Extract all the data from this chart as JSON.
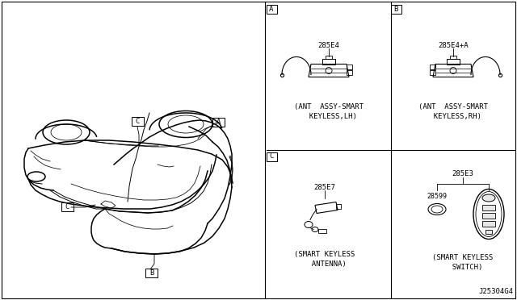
{
  "bg_color": "#ffffff",
  "text_color": "#000000",
  "fig_width": 6.4,
  "fig_height": 3.72,
  "diagram_code": "J25304G4",
  "parts": {
    "A": {
      "part_num": "285E4",
      "caption1": "(ANT  ASSY-SMART",
      "caption2": "  KEYLESS,LH)"
    },
    "B": {
      "part_num": "285E4+A",
      "caption1": "(ANT  ASSY-SMART",
      "caption2": "  KEYLESS,RH)"
    },
    "C": {
      "part_num": "285E7",
      "caption1": "(SMART KEYLESS",
      "caption2": "  ANTENNA)"
    },
    "D": {
      "part_num": "285E3",
      "sub_part": "28599",
      "caption1": "(SMART KEYLESS",
      "caption2": "  SWITCH)"
    }
  }
}
